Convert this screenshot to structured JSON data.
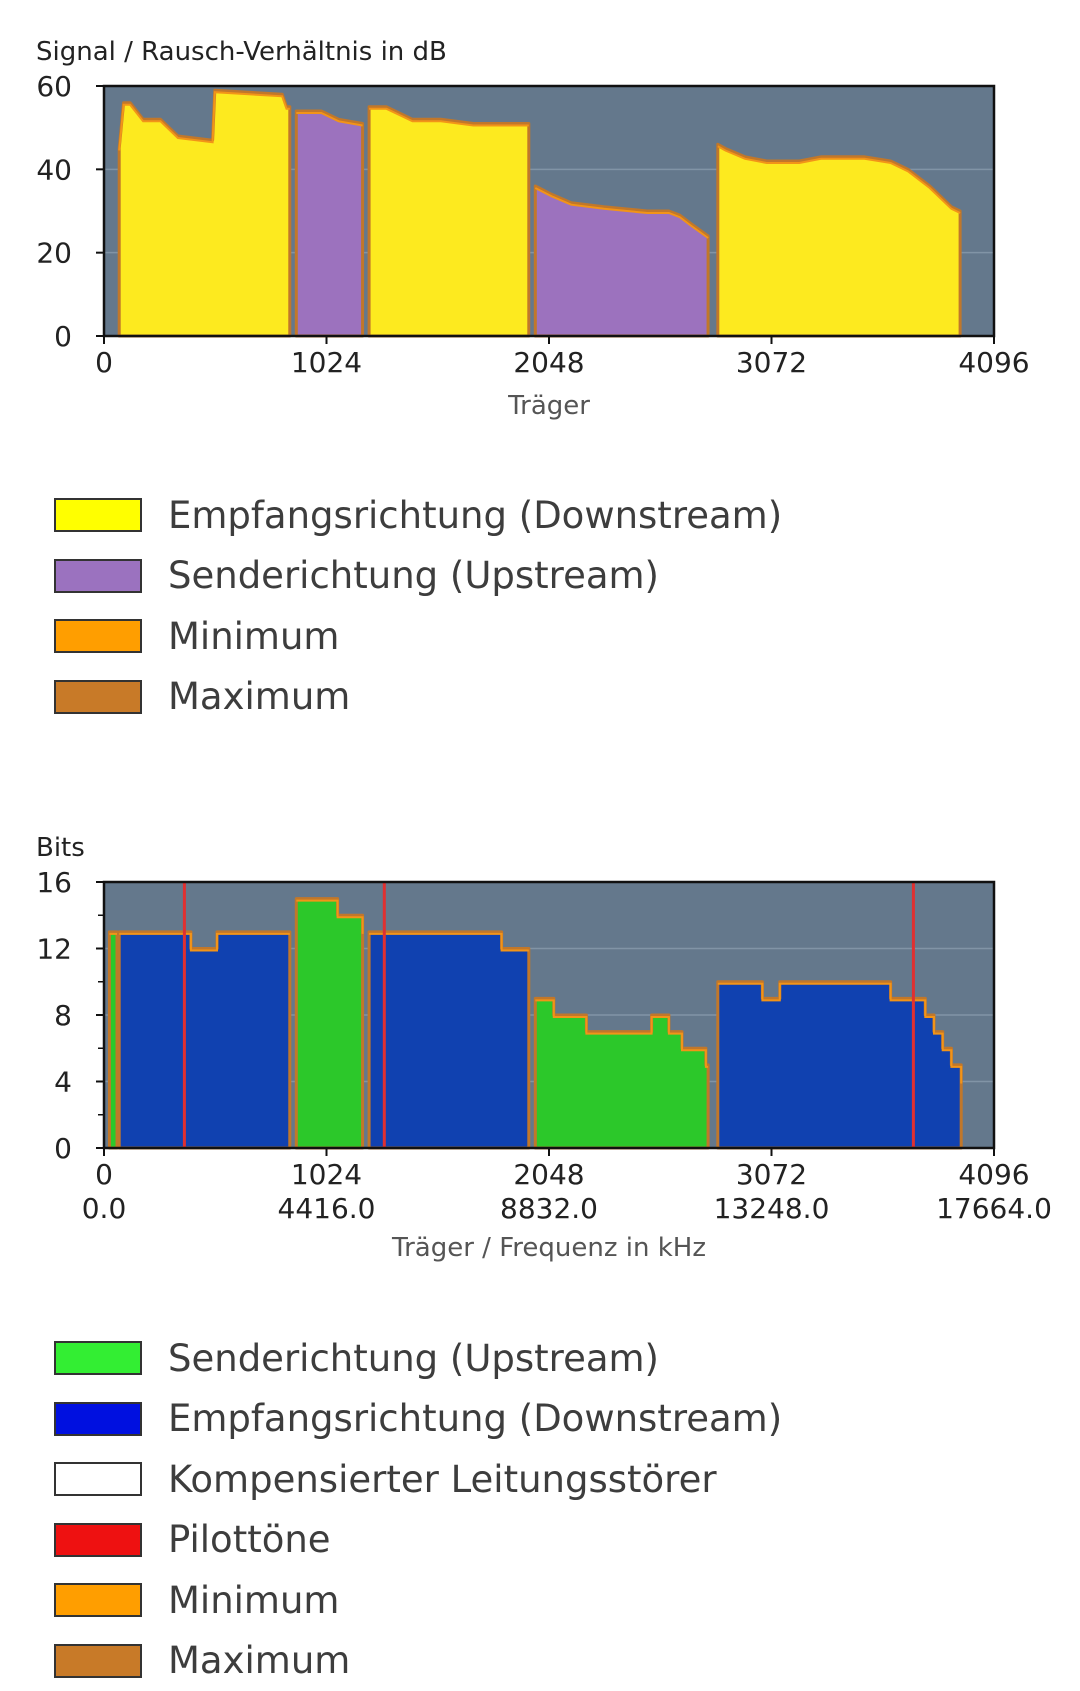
{
  "snr_chart": {
    "ylabel": "Signal / Rausch-Verhältnis in dB",
    "xlabel": "Träger",
    "legend": [
      {
        "label": "Empfangsrichtung (Downstream)",
        "color": "#ffff00"
      },
      {
        "label": "Senderichtung (Upstream)",
        "color": "#9b72bf"
      },
      {
        "label": "Minimum",
        "color": "#ff9e00"
      },
      {
        "label": "Maximum",
        "color": "#c87a28"
      }
    ]
  },
  "bits_chart": {
    "ylabel": "Bits",
    "xlabel": "Träger / Frequenz in kHz",
    "legend": [
      {
        "label": "Senderichtung (Upstream)",
        "color": "#33ee33"
      },
      {
        "label": "Empfangsrichtung (Downstream)",
        "color": "#0010e0"
      },
      {
        "label": "Kompensierter Leitungsstörer",
        "color": "#ffffff"
      },
      {
        "label": "Pilottöne",
        "color": "#ee1111"
      },
      {
        "label": "Minimum",
        "color": "#ff9e00"
      },
      {
        "label": "Maximum",
        "color": "#c87a28"
      }
    ]
  },
  "chart_data": [
    {
      "type": "area",
      "title": "",
      "ylabel": "Signal / Rausch-Verhältnis in dB",
      "xlabel": "Träger",
      "xlim": [
        0,
        4096
      ],
      "ylim": [
        0,
        60
      ],
      "xticks": [
        0,
        1024,
        2048,
        3072,
        4096
      ],
      "yticks": [
        0,
        20,
        40,
        60
      ],
      "grid": true,
      "legend_position": "below",
      "plot_background": "#64788c",
      "colors": {
        "downstream": "#fdea1f",
        "upstream": "#9c72be",
        "minimum": "#f29418",
        "maximum": "#c1772a"
      },
      "series": [
        {
          "name": "Empfangsrichtung (Downstream)",
          "color": "#fdea1f",
          "segments": [
            [
              [
                70,
                45
              ],
              [
                90,
                56
              ],
              [
                120,
                56
              ],
              [
                180,
                52
              ],
              [
                260,
                52
              ],
              [
                300,
                50
              ],
              [
                340,
                48
              ],
              [
                500,
                47
              ],
              [
                510,
                59
              ],
              [
                820,
                58
              ],
              [
                840,
                55
              ],
              [
                855,
                55
              ]
            ],
            [
              [
                1220,
                55
              ],
              [
                1300,
                55
              ],
              [
                1420,
                52
              ],
              [
                1550,
                52
              ],
              [
                1700,
                51
              ],
              [
                1950,
                51
              ],
              [
                1955,
                51
              ]
            ],
            [
              [
                2825,
                46
              ],
              [
                2860,
                45
              ],
              [
                2950,
                43
              ],
              [
                3050,
                42
              ],
              [
                3200,
                42
              ],
              [
                3300,
                43
              ],
              [
                3500,
                43
              ],
              [
                3620,
                42
              ],
              [
                3700,
                40
              ],
              [
                3800,
                36
              ],
              [
                3900,
                31
              ],
              [
                3940,
                30
              ]
            ]
          ]
        },
        {
          "name": "Senderichtung (Upstream)",
          "color": "#9c72be",
          "segments": [
            [
              [
                885,
                54
              ],
              [
                1000,
                54
              ],
              [
                1080,
                52
              ],
              [
                1190,
                51
              ]
            ],
            [
              [
                1985,
                36
              ],
              [
                2060,
                34
              ],
              [
                2150,
                32
              ],
              [
                2300,
                31
              ],
              [
                2500,
                30
              ],
              [
                2600,
                30
              ],
              [
                2650,
                29
              ],
              [
                2700,
                27
              ],
              [
                2780,
                24
              ]
            ]
          ]
        }
      ]
    },
    {
      "type": "area",
      "title": "",
      "ylabel": "Bits",
      "xlabel": "Träger / Frequenz in kHz",
      "xlim": [
        0,
        4096
      ],
      "ylim": [
        0,
        16
      ],
      "xticks": [
        0,
        1024,
        2048,
        3072,
        4096
      ],
      "xticks_secondary": [
        "0.0",
        "4416.0",
        "8832.0",
        "13248.0",
        "17664.0"
      ],
      "yticks": [
        0,
        4,
        8,
        12,
        16
      ],
      "grid": true,
      "legend_position": "below",
      "plot_background": "#64788c",
      "colors": {
        "upstream": "#2cc82a",
        "downstream": "#1041b0",
        "pilot": "#e03030",
        "minimum": "#f29418",
        "maximum": "#c1772a"
      },
      "series": [
        {
          "name": "Senderichtung (Upstream)",
          "color": "#2cc82a",
          "segments": [
            [
              [
                25,
                13
              ],
              [
                60,
                13
              ]
            ],
            [
              [
                885,
                15
              ],
              [
                1060,
                15
              ],
              [
                1075,
                14
              ],
              [
                1170,
                14
              ],
              [
                1190,
                13
              ]
            ],
            [
              [
                1985,
                9
              ],
              [
                2060,
                9
              ],
              [
                2070,
                8
              ],
              [
                2200,
                8
              ],
              [
                2220,
                7
              ],
              [
                2500,
                7
              ],
              [
                2520,
                8
              ],
              [
                2580,
                8
              ],
              [
                2600,
                7
              ],
              [
                2640,
                7
              ],
              [
                2660,
                6
              ],
              [
                2750,
                6
              ],
              [
                2770,
                5
              ],
              [
                2780,
                5
              ]
            ]
          ]
        },
        {
          "name": "Empfangsrichtung (Downstream)",
          "color": "#1041b0",
          "segments": [
            [
              [
                70,
                13
              ],
              [
                380,
                13
              ],
              [
                400,
                12
              ],
              [
                510,
                12
              ],
              [
                520,
                13
              ],
              [
                850,
                13
              ],
              [
                855,
                13
              ]
            ],
            [
              [
                1220,
                13
              ],
              [
                1800,
                13
              ],
              [
                1830,
                12
              ],
              [
                1955,
                12
              ]
            ],
            [
              [
                2825,
                10
              ],
              [
                3020,
                10
              ],
              [
                3030,
                9
              ],
              [
                3100,
                9
              ],
              [
                3110,
                10
              ],
              [
                3600,
                10
              ],
              [
                3620,
                9
              ],
              [
                3750,
                9
              ],
              [
                3780,
                8
              ],
              [
                3820,
                7
              ],
              [
                3860,
                6
              ],
              [
                3900,
                5
              ],
              [
                3945,
                4
              ]
            ]
          ]
        },
        {
          "name": "Pilottöne",
          "color": "#e03030",
          "x": [
            370,
            1290,
            3725
          ]
        }
      ]
    }
  ]
}
